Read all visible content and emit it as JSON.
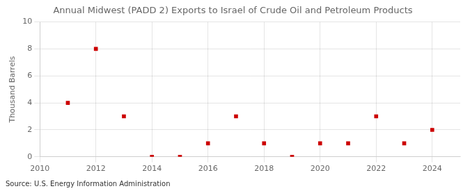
{
  "chart_data": {
    "type": "scatter",
    "title": "Annual Midwest (PADD 2) Exports to Israel of Crude Oil and Petroleum Products",
    "ylabel": "Thousand Barrels",
    "annotation": "Source: U.S. Energy Information Administration",
    "x": [
      2011,
      2012,
      2013,
      2014,
      2015,
      2016,
      2017,
      2018,
      2019,
      2020,
      2021,
      2022,
      2023,
      2024
    ],
    "values": [
      4,
      8,
      3,
      0,
      0,
      1,
      3,
      1,
      0,
      1,
      1,
      3,
      1,
      2
    ],
    "color": "#cc0000",
    "marker": "square",
    "xlim": [
      2010,
      2025
    ],
    "xticks": [
      2010,
      2012,
      2014,
      2016,
      2018,
      2020,
      2022,
      2024
    ],
    "ylim": [
      0,
      10
    ],
    "yticks": [
      0,
      2,
      4,
      6,
      8,
      10
    ],
    "grid": true
  }
}
